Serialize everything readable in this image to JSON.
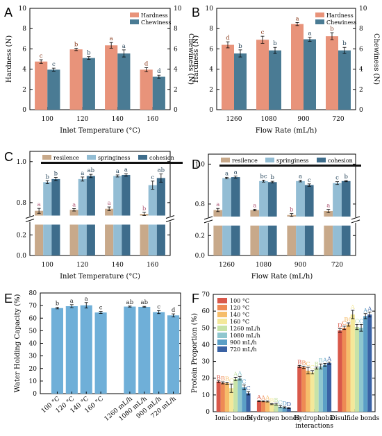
{
  "panels": {
    "A": {
      "label": "A",
      "type": "bar",
      "categories": [
        "100",
        "120",
        "140",
        "160"
      ],
      "xlabel": "Inlet Temperature (°C)",
      "ylabel": "Hardness (N)",
      "ylabel_right": "Chewiness (N)",
      "ylim": [
        0,
        10
      ],
      "yticks": [
        "0",
        "2",
        "4",
        "6",
        "8",
        "10"
      ],
      "legend": "top-right",
      "series": [
        {
          "name": "Hardness",
          "color": "#e8937a",
          "values": [
            4.75,
            5.95,
            6.35,
            3.95
          ],
          "err": [
            0.18,
            0.12,
            0.28,
            0.2
          ],
          "letters": [
            "c",
            "b",
            "a",
            "d"
          ]
        },
        {
          "name": "Chewiness",
          "color": "#4a7b94",
          "values": [
            3.95,
            5.1,
            5.55,
            3.25
          ],
          "err": [
            0.15,
            0.13,
            0.35,
            0.16
          ],
          "letters": [
            "c",
            "b",
            "a",
            "d"
          ]
        }
      ]
    },
    "B": {
      "label": "B",
      "type": "bar",
      "categories": [
        "1260",
        "1080",
        "900",
        "720"
      ],
      "xlabel": "Flow Rate (mL/h)",
      "ylabel": "Hardness (N)",
      "ylabel_right": "Chewiness (N)",
      "ylim": [
        0,
        10
      ],
      "yticks": [
        "0",
        "2",
        "4",
        "6",
        "8",
        "10"
      ],
      "legend": "top-right",
      "series": [
        {
          "name": "Hardness",
          "color": "#e8937a",
          "values": [
            6.4,
            6.9,
            8.45,
            7.25
          ],
          "err": [
            0.3,
            0.35,
            0.15,
            0.35
          ],
          "letters": [
            "d",
            "c",
            "a",
            "b"
          ]
        },
        {
          "name": "Chewiness",
          "color": "#4a7b94",
          "values": [
            5.55,
            5.85,
            6.95,
            5.85
          ],
          "err": [
            0.35,
            0.3,
            0.2,
            0.3
          ],
          "letters": [
            "b",
            "b",
            "a",
            "b"
          ]
        }
      ]
    },
    "C": {
      "label": "C",
      "type": "bar",
      "categories": [
        "100",
        "120",
        "140",
        "160"
      ],
      "xlabel": "Inlet Temperature (°C)",
      "yticks_upper": [
        "0.8",
        "1.0"
      ],
      "yticks_lower": [
        "0.2",
        "0.0"
      ],
      "legend": "top",
      "series": [
        {
          "name": "resilence",
          "color": "#c8a98a",
          "values": [
            0.76,
            0.765,
            0.77,
            0.745
          ],
          "err": [
            0.012,
            0.006,
            0.009,
            0.008
          ],
          "letters": [
            "a",
            "a",
            "a",
            "b"
          ]
        },
        {
          "name": "springiness",
          "color": "#93bdd4",
          "values": [
            0.9,
            0.915,
            0.93,
            0.885
          ],
          "err": [
            0.007,
            0.01,
            0.005,
            0.02
          ],
          "letters": [
            "b",
            "a",
            "a",
            "c"
          ]
        },
        {
          "name": "cohesion",
          "color": "#3e6d8c",
          "values": [
            0.915,
            0.93,
            0.935,
            0.92
          ],
          "err": [
            0.008,
            0.008,
            0.006,
            0.02
          ],
          "letters": [
            "b",
            "ab",
            "a",
            "ab"
          ]
        }
      ]
    },
    "D": {
      "label": "D",
      "type": "bar",
      "categories": [
        "1260",
        "1080",
        "900",
        "720"
      ],
      "xlabel": "Flow Rate (mL/h)",
      "yticks_upper": [
        "0.8",
        "1.0"
      ],
      "yticks_lower": [
        "0.2",
        "0.0"
      ],
      "legend": "top",
      "series": [
        {
          "name": "resilence",
          "color": "#c8a98a",
          "values": [
            0.77,
            0.77,
            0.745,
            0.765
          ],
          "err": [
            0.008,
            0.004,
            0.007,
            0.008
          ],
          "letters": [
            "a",
            "a",
            "b",
            "a"
          ]
        },
        {
          "name": "springiness",
          "color": "#93bdd4",
          "values": [
            0.93,
            0.915,
            0.915,
            0.905
          ],
          "err": [
            0.004,
            0.005,
            0.004,
            0.007
          ],
          "letters": [
            "a",
            "bc",
            "a",
            "c"
          ]
        },
        {
          "name": "cohesion",
          "color": "#3e6d8c",
          "values": [
            0.935,
            0.91,
            0.895,
            0.915
          ],
          "err": [
            0.005,
            0.004,
            0.006,
            0.003
          ],
          "letters": [
            "a",
            "b",
            "c",
            "b"
          ]
        }
      ]
    },
    "E": {
      "label": "E",
      "type": "bar",
      "categories": [
        "100 °C",
        "120 °C",
        "140 °C",
        "160 °C",
        "1260 mL/h",
        "1080 mL/h",
        "900 mL/h",
        "720 mL/h"
      ],
      "ylabel": "Water Holding Capacity (%)",
      "ylim": [
        0,
        80
      ],
      "yticks": [
        "0",
        "10",
        "20",
        "30",
        "40",
        "50",
        "60",
        "70",
        "80"
      ],
      "color": "#6fafd8",
      "values": [
        68.0,
        69.5,
        70.2,
        64.5,
        69.2,
        69.0,
        64.8,
        62.2
      ],
      "err": [
        0.6,
        1.2,
        2.2,
        0.8,
        0.4,
        0.4,
        1.2,
        1.2
      ],
      "letters": [
        "b",
        "a",
        "a",
        "c",
        "ab",
        "ab",
        "c",
        "d"
      ]
    },
    "F": {
      "label": "F",
      "type": "bar",
      "categories": [
        "Ionic bonds",
        "Hydrogen bonds",
        "Hydrophobic interactions",
        "Disulfide bonds"
      ],
      "ylabel": "Protein Proportion (%)",
      "ylim": [
        0,
        70
      ],
      "yticks": [
        "0",
        "10",
        "20",
        "30",
        "40",
        "50",
        "60",
        "70"
      ],
      "legend": "top-left",
      "series": [
        {
          "name": "100 °C",
          "color": "#d9584a",
          "values": [
            18,
            6.3,
            27,
            48.5
          ],
          "err": [
            0.5,
            0.3,
            0.6,
            1.0
          ],
          "letters": [
            "B",
            "A",
            "B",
            "D"
          ]
        },
        {
          "name": "120 °C",
          "color": "#ee8a54",
          "values": [
            17.2,
            6.2,
            26.5,
            50
          ],
          "err": [
            0.6,
            0.3,
            0.7,
            1.0
          ],
          "letters": [
            "B",
            "A",
            "B",
            "C"
          ]
        },
        {
          "name": "140 °C",
          "color": "#f6bd6a",
          "values": [
            17,
            6.1,
            24.5,
            52
          ],
          "err": [
            0.6,
            0.3,
            2.0,
            1.0
          ],
          "letters": [
            "B",
            "A",
            "C",
            "BC"
          ]
        },
        {
          "name": "160 °C",
          "color": "#f4e89a",
          "values": [
            14,
            4.5,
            23.5,
            58
          ],
          "err": [
            2.5,
            0.3,
            1.0,
            2.5
          ],
          "letters": [
            "C",
            "B",
            "C",
            "A"
          ]
        },
        {
          "name": "1260 mL/h",
          "color": "#c7e3a8",
          "values": [
            19.5,
            4.5,
            26,
            50.5
          ],
          "err": [
            1.0,
            0.5,
            0.6,
            1.5
          ],
          "letters": [
            "A",
            "B",
            "B",
            "C"
          ]
        },
        {
          "name": "1080 mL/h",
          "color": "#8fc7cf",
          "values": [
            20,
            3.0,
            27,
            50
          ],
          "err": [
            1.0,
            0.6,
            1.5,
            2.0
          ],
          "letters": [
            "A",
            "C",
            "B",
            "C"
          ]
        },
        {
          "name": "900 mL/h",
          "color": "#5b9fc6",
          "values": [
            14.5,
            2.5,
            28,
            57
          ],
          "err": [
            1.5,
            0.4,
            0.8,
            1.5
          ],
          "letters": [
            "C",
            "D",
            "A",
            "A"
          ]
        },
        {
          "name": "720 mL/h",
          "color": "#3a62a4",
          "values": [
            11,
            2.2,
            29,
            58
          ],
          "err": [
            1.0,
            0.3,
            0.6,
            1.5
          ],
          "letters": [
            "C",
            "D",
            "A",
            "A"
          ]
        }
      ]
    }
  }
}
